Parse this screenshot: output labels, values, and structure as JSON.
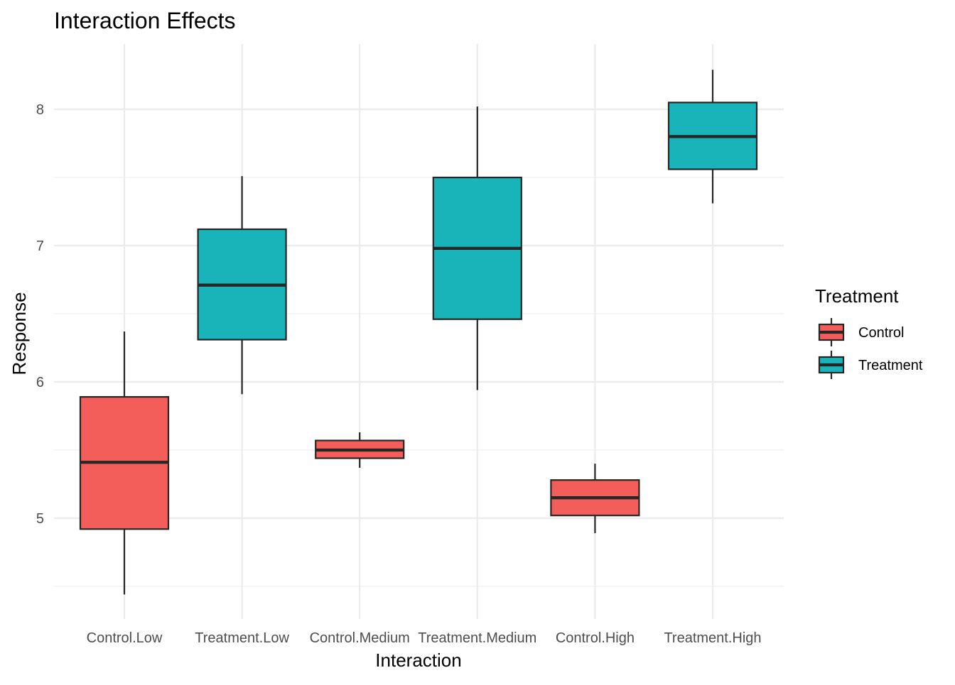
{
  "chart_data": {
    "type": "boxplot",
    "title": "Interaction Effects",
    "xlabel": "Interaction",
    "ylabel": "Response",
    "ylim": [
      4.4,
      8.4
    ],
    "y_major_ticks": [
      5,
      6,
      7,
      8
    ],
    "y_minor_ticks": [
      4.5,
      5.5,
      6.5,
      7.5
    ],
    "categories": [
      "Control.Low",
      "Treatment.Low",
      "Control.Medium",
      "Treatment.Medium",
      "Control.High",
      "Treatment.High"
    ],
    "boxes": [
      {
        "category": "Control.Low",
        "group": "Control",
        "min": 4.44,
        "q1": 4.92,
        "median": 5.41,
        "q3": 5.89,
        "max": 6.37
      },
      {
        "category": "Treatment.Low",
        "group": "Treatment",
        "min": 5.91,
        "q1": 6.31,
        "median": 6.71,
        "q3": 7.12,
        "max": 7.51
      },
      {
        "category": "Control.Medium",
        "group": "Control",
        "min": 5.37,
        "q1": 5.44,
        "median": 5.5,
        "q3": 5.57,
        "max": 5.63
      },
      {
        "category": "Treatment.Medium",
        "group": "Treatment",
        "min": 5.94,
        "q1": 6.46,
        "median": 6.98,
        "q3": 7.5,
        "max": 8.02
      },
      {
        "category": "Control.High",
        "group": "Control",
        "min": 4.89,
        "q1": 5.02,
        "median": 5.15,
        "q3": 5.28,
        "max": 5.4
      },
      {
        "category": "Treatment.High",
        "group": "Treatment",
        "min": 7.31,
        "q1": 7.56,
        "median": 7.8,
        "q3": 8.05,
        "max": 8.29
      }
    ],
    "grid": true,
    "legend": {
      "title": "Treatment",
      "placement": "right",
      "entries": [
        {
          "label": "Control",
          "color": "#f8766d"
        },
        {
          "label": "Treatment",
          "color": "#00bfc4"
        }
      ]
    }
  },
  "colors": {
    "Control": "#f35e5a",
    "Treatment": "#19b4b9"
  }
}
